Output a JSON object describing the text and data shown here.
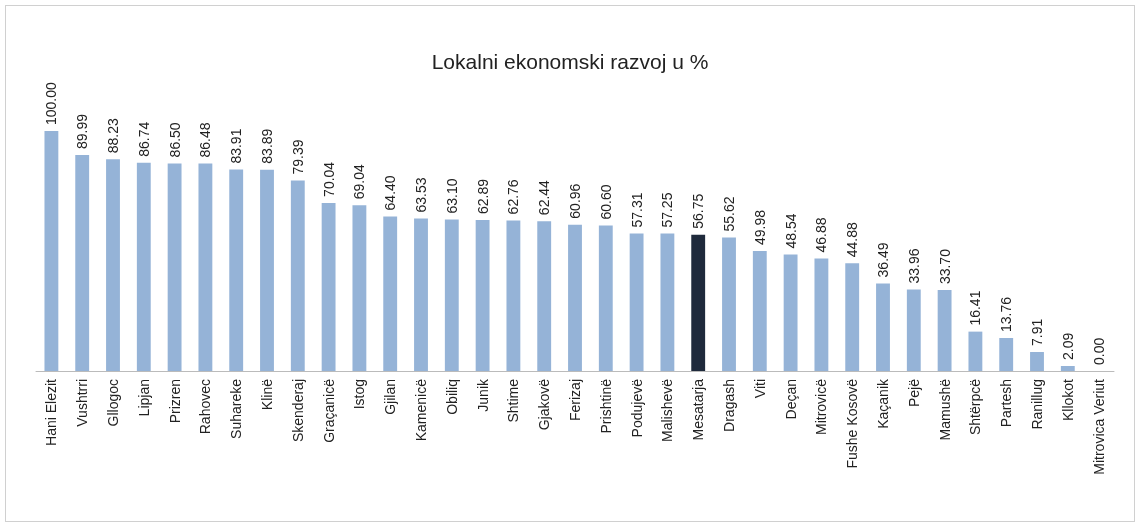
{
  "chart_data": {
    "type": "bar",
    "title": "Lokalni ekonomski razvoj u %",
    "categories": [
      "Hani Elezit",
      "Vushtrri",
      "Gllogoc",
      "Lipjan",
      "Prizren",
      "Rahovec",
      "Suhareke",
      "Klinë",
      "Skenderaj",
      "Graçanicë",
      "Istog",
      "Gjilan",
      "Kamenicë",
      "Obiliq",
      "Junik",
      "Shtime",
      "Gjakovë",
      "Ferizaj",
      "Prishtinë",
      "Podujevë",
      "Malishevë",
      "Mesatarja",
      "Dragash",
      "Viti",
      "Deçan",
      "Mitrovicë",
      "Fushe Kosovë",
      "Kaçanik",
      "Pejë",
      "Mamushë",
      "Shtërpcë",
      "Partesh",
      "Ranillug",
      "Kllokot",
      "Mitrovica Veriut"
    ],
    "values": [
      100,
      89.99,
      88.23,
      86.74,
      86.5,
      86.48,
      83.91,
      83.89,
      79.39,
      70.04,
      69.04,
      64.4,
      63.53,
      63.1,
      62.89,
      62.76,
      62.44,
      60.96,
      60.6,
      57.31,
      57.25,
      56.75,
      55.62,
      49.98,
      48.54,
      46.88,
      44.88,
      36.49,
      33.96,
      33.7,
      16.41,
      13.76,
      7.91,
      2.09,
      0
    ],
    "value_labels": [
      "100.00",
      "89.99",
      "88.23",
      "86.74",
      "86.50",
      "86.48",
      "83.91",
      "83.89",
      "79.39",
      "70.04",
      "69.04",
      "64.40",
      "63.53",
      "63.10",
      "62.89",
      "62.76",
      "62.44",
      "60.96",
      "60.60",
      "57.31",
      "57.25",
      "56.75",
      "55.62",
      "49.98",
      "48.54",
      "46.88",
      "44.88",
      "36.49",
      "33.96",
      "33.70",
      "16.41",
      "13.76",
      "7.91",
      "2.09",
      "0.00"
    ],
    "colors": [
      "#95b3d7",
      "#95b3d7",
      "#95b3d7",
      "#95b3d7",
      "#95b3d7",
      "#95b3d7",
      "#95b3d7",
      "#95b3d7",
      "#95b3d7",
      "#95b3d7",
      "#95b3d7",
      "#95b3d7",
      "#95b3d7",
      "#95b3d7",
      "#95b3d7",
      "#95b3d7",
      "#95b3d7",
      "#95b3d7",
      "#95b3d7",
      "#95b3d7",
      "#95b3d7",
      "#1f2a3c",
      "#95b3d7",
      "#95b3d7",
      "#95b3d7",
      "#95b3d7",
      "#95b3d7",
      "#95b3d7",
      "#95b3d7",
      "#95b3d7",
      "#95b3d7",
      "#95b3d7",
      "#95b3d7",
      "#95b3d7",
      "#95b3d7"
    ]
  }
}
